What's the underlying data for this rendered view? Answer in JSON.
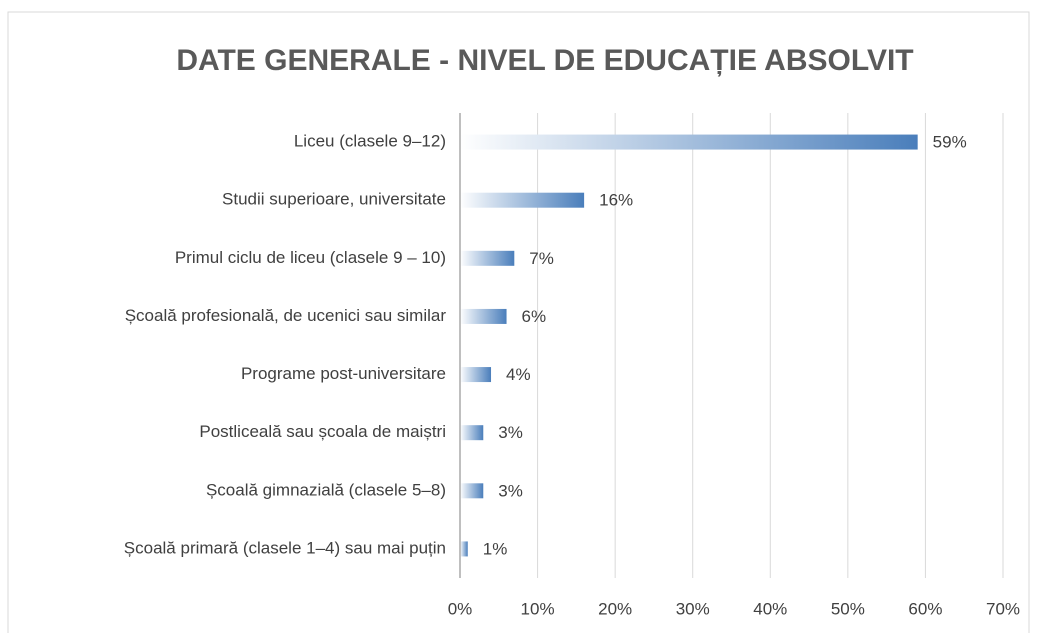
{
  "chart_data": {
    "type": "bar",
    "orientation": "horizontal",
    "title": "DATE GENERALE - NIVEL DE EDUCAȚIE ABSOLVIT",
    "categories": [
      "Liceu (clasele 9–12)",
      "Studii superioare, universitate",
      "Primul ciclu de liceu (clasele 9 – 10)",
      "Școală profesională, de ucenici sau similar",
      "Programe post-universitare",
      "Postliceală sau școala de maiștri",
      "Școală gimnazială (clasele 5–8)",
      "Școală primară (clasele 1–4) sau mai puțin"
    ],
    "values": [
      59,
      16,
      7,
      6,
      4,
      3,
      3,
      1
    ],
    "value_labels": [
      "59%",
      "16%",
      "7%",
      "6%",
      "4%",
      "3%",
      "3%",
      "1%"
    ],
    "color": "#4a7ebb",
    "xlim": [
      0,
      70
    ],
    "xticks": [
      {
        "value": 0,
        "label": "0%"
      },
      {
        "value": 10,
        "label": "10%"
      },
      {
        "value": 20,
        "label": "20%"
      },
      {
        "value": 30,
        "label": "30%"
      },
      {
        "value": 40,
        "label": "40%"
      },
      {
        "value": 50,
        "label": "50%"
      },
      {
        "value": 60,
        "label": "60%"
      },
      {
        "value": 70,
        "label": "70%"
      }
    ],
    "grid": true
  }
}
